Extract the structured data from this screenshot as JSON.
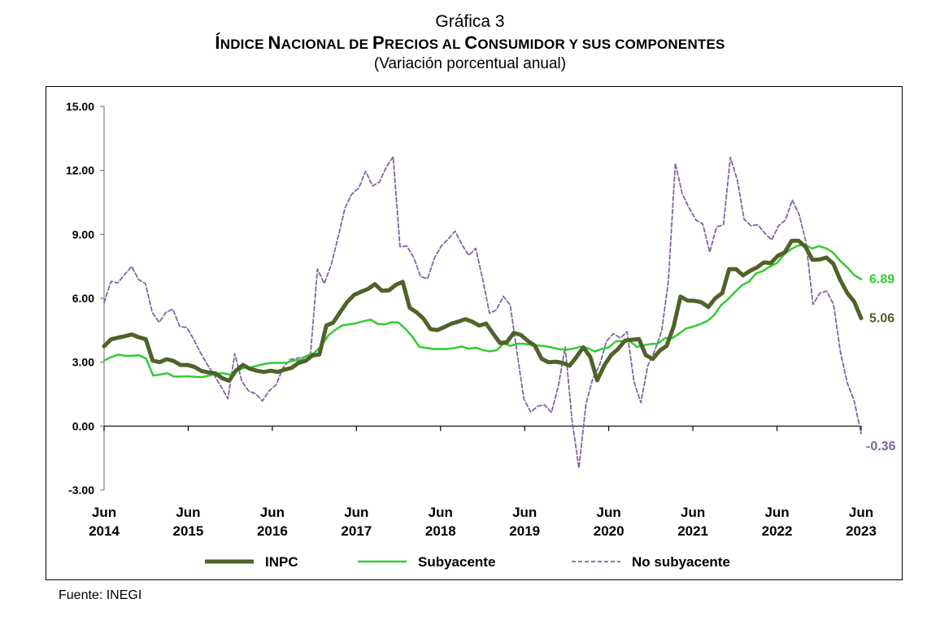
{
  "header": {
    "fig_label": "Gráfica 3",
    "title_parts": [
      {
        "text": "Í",
        "small": false
      },
      {
        "text": "NDICE ",
        "small": true
      },
      {
        "text": "N",
        "small": false
      },
      {
        "text": "ACIONAL DE ",
        "small": true
      },
      {
        "text": "P",
        "small": false
      },
      {
        "text": "RECIOS AL ",
        "small": true
      },
      {
        "text": "C",
        "small": false
      },
      {
        "text": "ONSUMIDOR Y SUS COMPONENTES",
        "small": true
      }
    ],
    "subtitle": "(Variación porcentual anual)"
  },
  "source": "Fuente: INEGI",
  "chart_data": {
    "type": "line",
    "title": "Índice Nacional de Precios al Consumidor y sus componentes",
    "ylim": [
      -3,
      15
    ],
    "yticks": [
      "15.00",
      "12.00",
      "9.00",
      "6.00",
      "3.00",
      "0.00",
      "-3.00"
    ],
    "ytick_values": [
      15,
      12,
      9,
      6,
      3,
      0,
      -3
    ],
    "xticks": [
      {
        "line1": "Jun",
        "line2": "2014"
      },
      {
        "line1": "Jun",
        "line2": "2015"
      },
      {
        "line1": "Jun",
        "line2": "2016"
      },
      {
        "line1": "Jun",
        "line2": "2017"
      },
      {
        "line1": "Jun",
        "line2": "2018"
      },
      {
        "line1": "Jun",
        "line2": "2019"
      },
      {
        "line1": "Jun",
        "line2": "2020"
      },
      {
        "line1": "Jun",
        "line2": "2021"
      },
      {
        "line1": "Jun",
        "line2": "2022"
      },
      {
        "line1": "Jun",
        "line2": "2023"
      }
    ],
    "x_start": "2014-06",
    "x_end": "2023-06",
    "grid": false,
    "legend": "bottom",
    "series": [
      {
        "name": "INPC",
        "color": "#4f6228",
        "style": "solid-thick",
        "end_label": "5.06",
        "values": [
          3.75,
          4.07,
          4.15,
          4.22,
          4.3,
          4.17,
          4.08,
          3.07,
          3.0,
          3.14,
          3.06,
          2.87,
          2.87,
          2.78,
          2.59,
          2.52,
          2.48,
          2.25,
          2.13,
          2.61,
          2.87,
          2.69,
          2.6,
          2.54,
          2.6,
          2.54,
          2.65,
          2.73,
          2.97,
          3.06,
          3.31,
          3.36,
          4.72,
          4.86,
          5.35,
          5.82,
          6.16,
          6.3,
          6.44,
          6.66,
          6.35,
          6.37,
          6.63,
          6.77,
          5.55,
          5.34,
          5.04,
          4.55,
          4.51,
          4.65,
          4.81,
          4.9,
          5.02,
          4.9,
          4.72,
          4.81,
          4.35,
          3.9,
          3.94,
          4.38,
          4.28,
          4.0,
          3.78,
          3.16,
          3.0,
          3.02,
          2.97,
          2.83,
          3.24,
          3.7,
          3.25,
          2.15,
          2.84,
          3.33,
          3.62,
          4.01,
          4.05,
          4.09,
          3.33,
          3.15,
          3.54,
          3.76,
          4.67,
          6.08,
          5.89,
          5.88,
          5.81,
          5.59,
          6.0,
          6.24,
          7.37,
          7.36,
          7.07,
          7.28,
          7.45,
          7.68,
          7.65,
          7.99,
          8.15,
          8.7,
          8.7,
          8.41,
          7.8,
          7.82,
          7.91,
          7.62,
          6.85,
          6.25,
          5.84,
          5.06
        ]
      },
      {
        "name": "Subyacente",
        "color": "#33cc33",
        "style": "solid",
        "end_label": "6.89",
        "values": [
          3.07,
          3.24,
          3.35,
          3.3,
          3.3,
          3.32,
          3.17,
          2.37,
          2.42,
          2.48,
          2.32,
          2.33,
          2.34,
          2.31,
          2.3,
          2.37,
          2.46,
          2.48,
          2.41,
          2.6,
          2.74,
          2.76,
          2.85,
          2.93,
          2.97,
          2.97,
          2.97,
          3.08,
          3.1,
          3.31,
          3.44,
          3.76,
          4.26,
          4.52,
          4.73,
          4.78,
          4.83,
          4.92,
          5.0,
          4.8,
          4.77,
          4.87,
          4.86,
          4.56,
          4.19,
          3.71,
          3.67,
          3.62,
          3.62,
          3.62,
          3.66,
          3.74,
          3.63,
          3.68,
          3.57,
          3.51,
          3.56,
          3.87,
          3.77,
          3.87,
          3.86,
          3.8,
          3.78,
          3.75,
          3.68,
          3.61,
          3.59,
          3.64,
          3.73,
          3.66,
          3.5,
          3.62,
          3.69,
          3.98,
          3.99,
          3.99,
          3.71,
          3.8,
          3.85,
          3.87,
          4.12,
          4.12,
          4.33,
          4.58,
          4.66,
          4.78,
          4.92,
          5.19,
          5.67,
          5.95,
          6.29,
          6.61,
          6.78,
          7.16,
          7.28,
          7.49,
          7.65,
          8.05,
          8.3,
          8.47,
          8.51,
          8.33,
          8.45,
          8.34,
          8.14,
          7.76,
          7.46,
          7.09,
          6.89
        ]
      },
      {
        "name": "No subyacente",
        "color": "#8064a2",
        "style": "dashed",
        "end_label": "-0.36",
        "values": [
          5.8,
          6.79,
          6.72,
          7.12,
          7.5,
          6.88,
          6.69,
          5.34,
          4.87,
          5.34,
          5.49,
          4.67,
          4.63,
          4.09,
          3.45,
          2.89,
          2.39,
          1.85,
          1.29,
          3.4,
          2.11,
          1.65,
          1.52,
          1.18,
          1.66,
          1.94,
          2.74,
          3.12,
          3.18,
          3.24,
          3.4,
          7.37,
          6.69,
          7.57,
          8.86,
          10.23,
          10.89,
          11.17,
          11.96,
          11.27,
          11.45,
          12.15,
          12.64,
          8.42,
          8.45,
          7.9,
          7.01,
          6.92,
          7.89,
          8.45,
          8.78,
          9.15,
          8.51,
          8.01,
          8.34,
          6.91,
          5.29,
          5.45,
          6.09,
          5.69,
          3.46,
          1.27,
          0.66,
          0.93,
          1.0,
          0.63,
          1.87,
          3.71,
          0.26,
          -1.97,
          1.01,
          2.22,
          2.86,
          3.98,
          4.34,
          4.13,
          4.43,
          2.08,
          1.1,
          2.83,
          3.53,
          4.44,
          6.81,
          12.34,
          10.92,
          10.24,
          9.67,
          9.48,
          8.16,
          9.35,
          9.45,
          12.61,
          11.56,
          9.71,
          9.4,
          9.45,
          9.05,
          8.73,
          9.4,
          9.67,
          10.61,
          9.92,
          8.61,
          5.71,
          6.24,
          6.33,
          5.71,
          3.46,
          2.01,
          1.18,
          -0.36
        ]
      }
    ]
  }
}
